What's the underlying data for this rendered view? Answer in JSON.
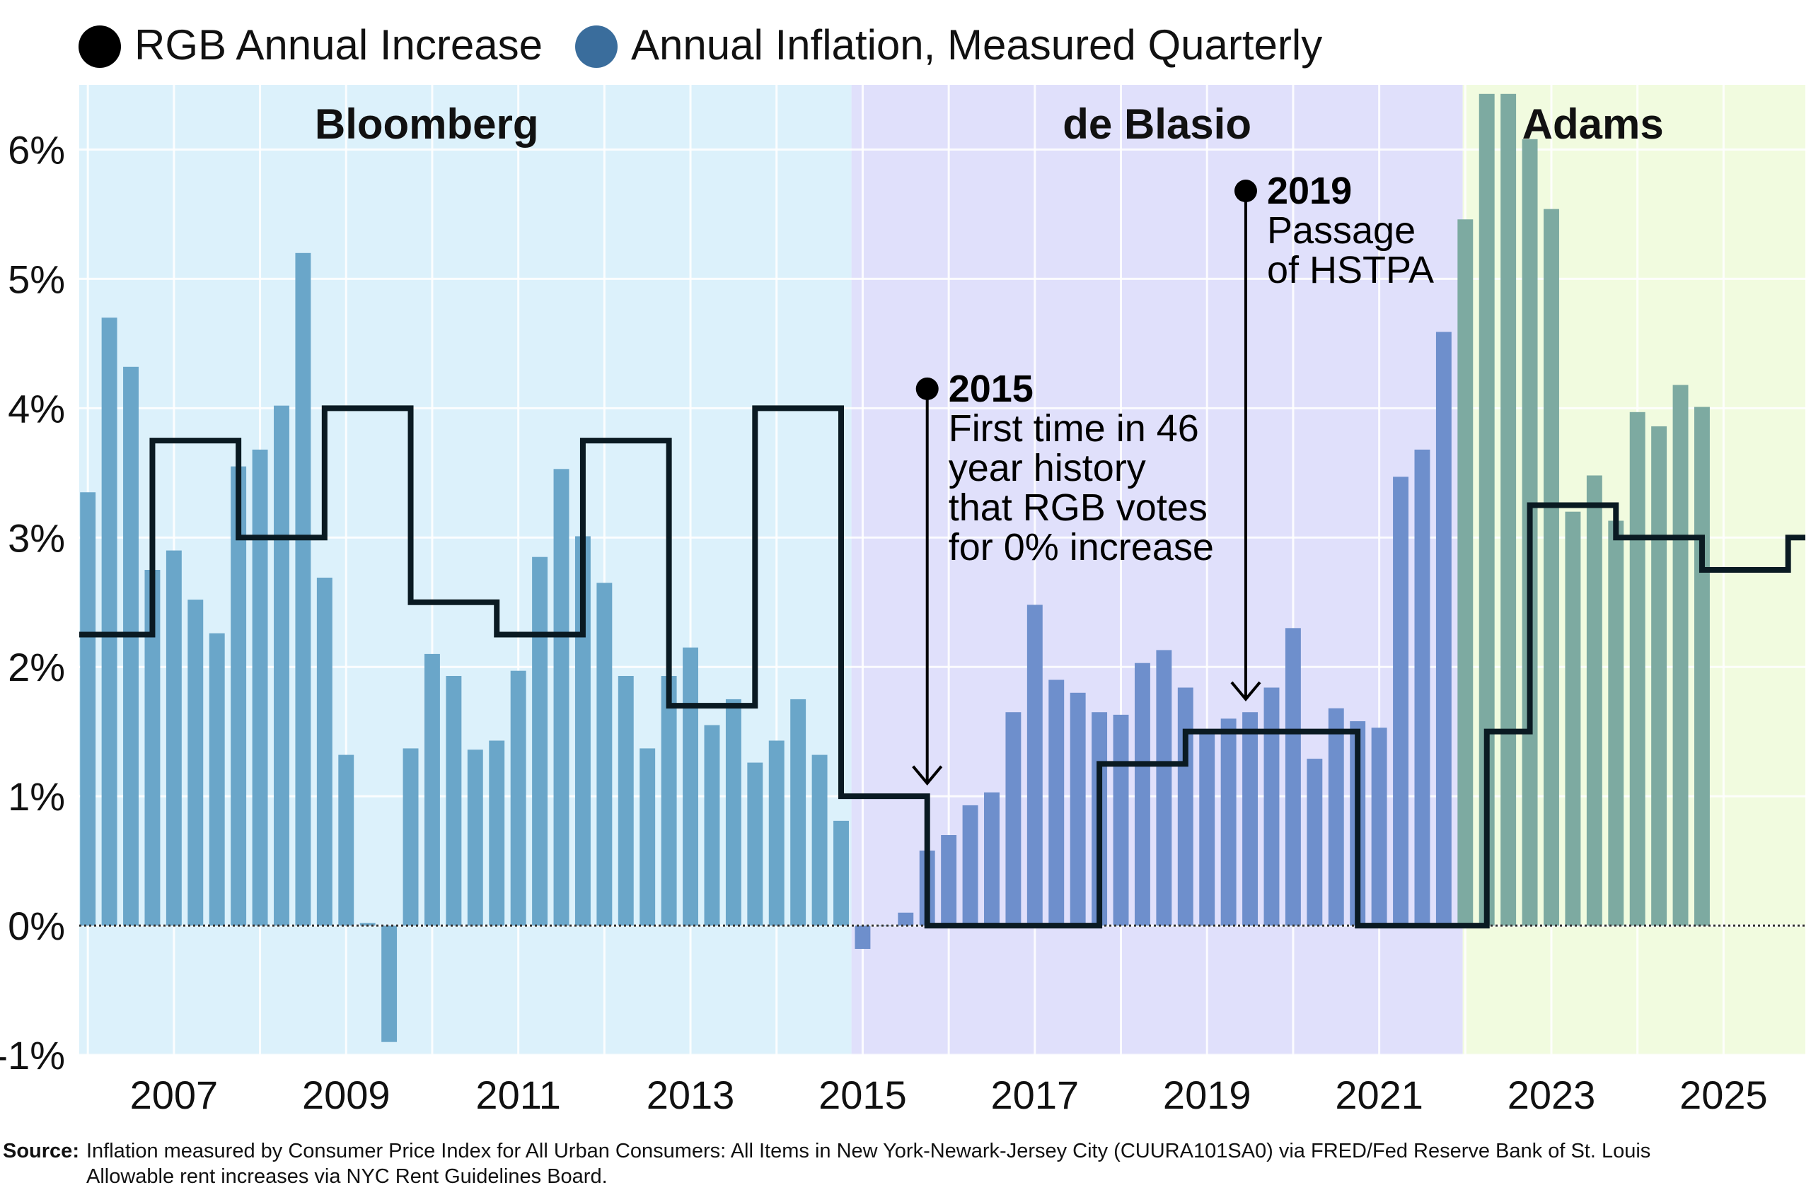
{
  "chart_data": {
    "type": "bar",
    "legend": {
      "placement": "top-left",
      "items": [
        {
          "label": "RGB Annual Increase",
          "color": "#000000"
        },
        {
          "label": "Annual Inflation, Measured Quarterly",
          "color": "#3a6d9c"
        }
      ]
    },
    "x_range": [
      2005.9,
      2025.95
    ],
    "ylim": [
      -1,
      6.5
    ],
    "y_ticks": [
      {
        "value": -1,
        "label": "-1%"
      },
      {
        "value": 0,
        "label": "0%"
      },
      {
        "value": 1,
        "label": "1%"
      },
      {
        "value": 2,
        "label": "2%"
      },
      {
        "value": 3,
        "label": "3%"
      },
      {
        "value": 4,
        "label": "4%"
      },
      {
        "value": 5,
        "label": "5%"
      },
      {
        "value": 6,
        "label": "6%"
      }
    ],
    "x_ticks": [
      {
        "value": 2007,
        "label": "2007"
      },
      {
        "value": 2009,
        "label": "2009"
      },
      {
        "value": 2011,
        "label": "2011"
      },
      {
        "value": 2013,
        "label": "2013"
      },
      {
        "value": 2015,
        "label": "2015"
      },
      {
        "value": 2017,
        "label": "2017"
      },
      {
        "value": 2019,
        "label": "2019"
      },
      {
        "value": 2021,
        "label": "2021"
      },
      {
        "value": 2023,
        "label": "2023"
      },
      {
        "value": 2025,
        "label": "2025"
      }
    ],
    "grid": true,
    "administrations": [
      {
        "label": "Bloomberg",
        "start": 2005.9,
        "end": 2014.87,
        "color": "#dcf1fb"
      },
      {
        "label": "de Blasio",
        "start": 2014.87,
        "end": 2021.97,
        "color": "#e0e0fb"
      },
      {
        "label": "Adams",
        "start": 2021.97,
        "end": 2025.95,
        "color": "#f1fbdf"
      }
    ],
    "inflation_series": {
      "name": "Annual Inflation, Measured Quarterly",
      "quarter_start": 2006.0,
      "values": [
        3.35,
        4.7,
        4.32,
        2.75,
        2.9,
        2.52,
        2.26,
        3.55,
        3.68,
        4.02,
        5.2,
        2.69,
        1.32,
        0.02,
        -0.9,
        1.37,
        2.1,
        1.93,
        1.36,
        1.43,
        1.97,
        2.85,
        3.53,
        3.01,
        2.65,
        1.93,
        1.37,
        1.93,
        2.15,
        1.55,
        1.75,
        1.26,
        1.43,
        1.75,
        1.32,
        0.81,
        -0.18,
        0.0,
        0.1,
        0.58,
        0.7,
        0.93,
        1.03,
        1.65,
        2.48,
        1.9,
        1.8,
        1.65,
        1.63,
        2.03,
        2.13,
        1.84,
        1.48,
        1.6,
        1.65,
        1.84,
        2.3,
        1.29,
        1.68,
        1.58,
        1.53,
        3.47,
        3.68,
        4.59,
        5.46,
        6.43,
        6.43,
        6.08,
        5.54,
        3.2,
        3.48,
        3.13,
        3.97,
        3.86,
        4.18,
        4.01
      ],
      "colors_by_admin": {
        "Bloomberg": "#6aa6c9",
        "de Blasio": "#6e8fcc",
        "Adams": "#7daaa1"
      }
    },
    "rgb_series": {
      "name": "RGB Annual Increase",
      "steps": [
        {
          "start": 2005.9,
          "value": 2.25
        },
        {
          "start": 2006.75,
          "value": 3.75
        },
        {
          "start": 2007.75,
          "value": 3.0
        },
        {
          "start": 2008.75,
          "value": 4.0
        },
        {
          "start": 2009.75,
          "value": 2.5
        },
        {
          "start": 2010.75,
          "value": 2.25
        },
        {
          "start": 2011.75,
          "value": 3.75
        },
        {
          "start": 2012.75,
          "value": 1.7
        },
        {
          "start": 2013.75,
          "value": 4.0
        },
        {
          "start": 2014.75,
          "value": 1.0
        },
        {
          "start": 2015.75,
          "value": 0.0
        },
        {
          "start": 2017.75,
          "value": 1.25
        },
        {
          "start": 2018.75,
          "value": 1.5
        },
        {
          "start": 2020.75,
          "value": 0.0
        },
        {
          "start": 2022.25,
          "value": 1.5
        },
        {
          "start": 2022.75,
          "value": 3.25
        },
        {
          "start": 2023.75,
          "value": 3.0
        },
        {
          "start": 2024.75,
          "value": 2.75
        },
        {
          "start": 2025.75,
          "value": 3.0
        }
      ],
      "end": 2025.95,
      "color": "#0a1a22"
    },
    "annotations": [
      {
        "title": "2015",
        "lines": [
          "First time in 46",
          "year history",
          "that RGB votes",
          "for 0% increase"
        ],
        "x": 2015.75,
        "dot_y": 4.15,
        "arrow_to_y": 1.1
      },
      {
        "title": "2019",
        "lines": [
          "Passage",
          "of HSTPA"
        ],
        "x": 2019.45,
        "dot_y": 5.68,
        "arrow_to_y": 1.75
      }
    ]
  },
  "source": {
    "label": "Source:",
    "lines": [
      "Inflation measured by Consumer Price Index for All Urban Consumers: All Items in New York-Newark-Jersey City (CUURA101SA0) via FRED/Fed Reserve Bank of St. Louis",
      "Allowable rent increases via NYC Rent Guidelines Board."
    ]
  }
}
